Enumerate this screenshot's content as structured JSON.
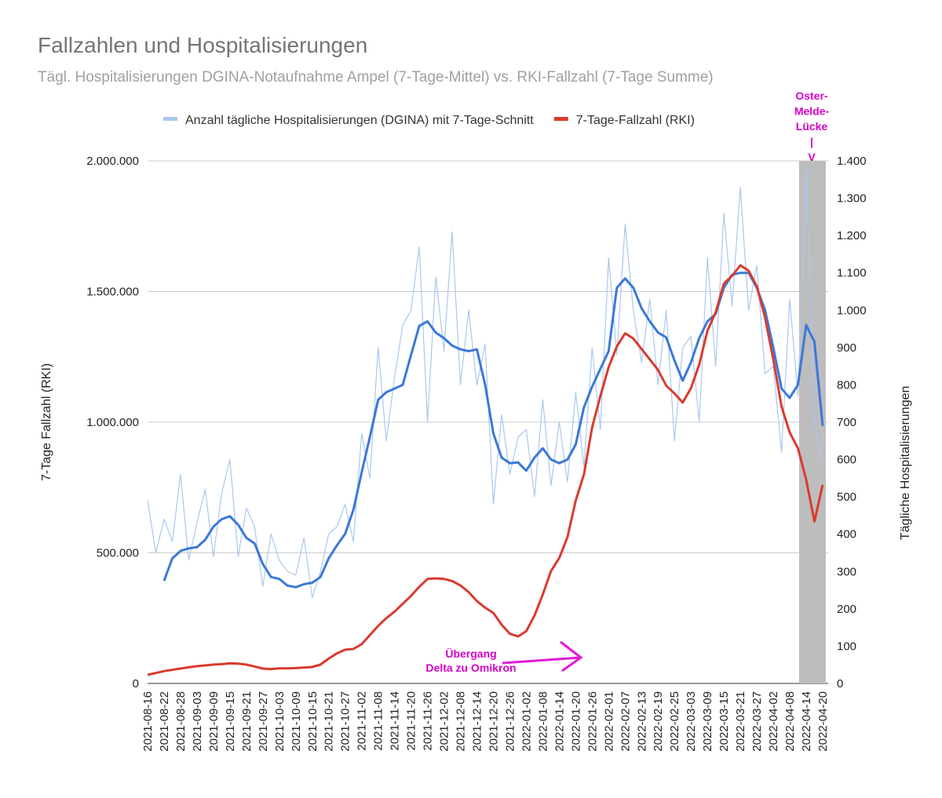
{
  "chart_data": {
    "type": "line",
    "title": "Fallzahlen und Hospitalisierungen",
    "subtitle": "Tägl. Hospitalisierungen DGINA-Notaufnahme Ampel (7-Tage-Mittel) vs. RKI-Fallzahl (7-Tage Summe)",
    "y_label": "7-Tage Fallzahl (RKI)",
    "y2_label": "Tägliche Hospitalisierungen",
    "annotations": [
      {
        "lines": [
          "Oster-",
          "Melde-",
          "Lücke",
          "|",
          "V"
        ],
        "color": "#d400c8"
      },
      {
        "lines": [
          "Übergang",
          "Delta zu Omikron"
        ],
        "color": "#d400c8"
      }
    ],
    "categories": [
      "2021-08-16",
      null,
      "2021-08-22",
      null,
      "2021-08-28",
      null,
      "2021-09-03",
      null,
      "2021-09-09",
      null,
      "2021-09-15",
      null,
      "2021-09-21",
      null,
      "2021-09-27",
      null,
      "2021-10-03",
      null,
      "2021-10-09",
      null,
      "2021-10-15",
      null,
      "2021-10-21",
      null,
      "2021-10-27",
      null,
      "2021-11-02",
      null,
      "2021-11-08",
      null,
      "2021-11-14",
      null,
      "2021-11-20",
      null,
      "2021-11-26",
      null,
      "2021-12-02",
      null,
      "2021-12-08",
      null,
      "2021-12-14",
      null,
      "2021-12-20",
      null,
      "2021-12-26",
      null,
      "2022-01-02",
      null,
      "2022-01-08",
      null,
      "2022-01-14",
      null,
      "2022-01-20",
      null,
      "2022-01-26",
      null,
      "2022-02-01",
      null,
      "2022-02-07",
      null,
      "2022-02-13",
      null,
      "2022-02-19",
      null,
      "2022-02-25",
      null,
      "2022-03-03",
      null,
      "2022-03-09",
      null,
      "2022-03-15",
      null,
      "2022-03-21",
      null,
      "2022-03-27",
      null,
      "2022-04-02",
      null,
      "2022-04-08",
      null,
      "2022-04-14",
      null,
      "2022-04-20"
    ],
    "series": [
      {
        "name": "Anzahl tägliche Hospitalisierungen (DGINA) mit 7-Tage-Schnitt",
        "color": "#a9c8f0",
        "axis": "y2",
        "width": 1.2,
        "values": [
          490,
          350,
          440,
          380,
          560,
          330,
          430,
          520,
          340,
          510,
          600,
          340,
          470,
          420,
          260,
          400,
          330,
          300,
          290,
          390,
          230,
          300,
          400,
          420,
          480,
          380,
          670,
          550,
          900,
          650,
          820,
          960,
          1000,
          1170,
          700,
          1090,
          890,
          1210,
          800,
          1000,
          800,
          910,
          480,
          720,
          560,
          660,
          680,
          500,
          760,
          530,
          700,
          540,
          780,
          580,
          900,
          680,
          1140,
          880,
          1230,
          1000,
          860,
          1030,
          800,
          1000,
          650,
          900,
          930,
          700,
          1140,
          850,
          1260,
          1010,
          1330,
          1000,
          1120,
          830,
          850,
          620,
          1030,
          770,
          1380,
          700,
          580
        ]
      },
      {
        "color": "#3b78d8",
        "axis": "y2",
        "width": 3,
        "values": [
          null,
          null,
          275,
          335,
          355,
          362,
          365,
          385,
          420,
          440,
          448,
          425,
          390,
          375,
          320,
          285,
          280,
          262,
          258,
          266,
          270,
          285,
          335,
          370,
          401,
          465,
          565,
          660,
          760,
          780,
          790,
          800,
          880,
          958,
          970,
          940,
          925,
          905,
          895,
          890,
          895,
          800,
          670,
          605,
          590,
          592,
          570,
          605,
          630,
          600,
          590,
          600,
          640,
          740,
          795,
          843,
          890,
          1060,
          1085,
          1060,
          1005,
          970,
          940,
          927,
          865,
          811,
          860,
          925,
          970,
          990,
          1060,
          1095,
          1100,
          1100,
          1060,
          1000,
          900,
          790,
          765,
          800,
          960,
          915,
          690
        ]
      },
      {
        "name": "7-Tage-Fallzahl (RKI)",
        "color": "#db3a2e",
        "axis": "y",
        "width": 3,
        "values": [
          33000,
          40000,
          47000,
          52000,
          57000,
          62000,
          66000,
          69000,
          72000,
          74000,
          77000,
          76000,
          72000,
          65000,
          57000,
          55000,
          58000,
          58000,
          59000,
          61000,
          63000,
          72000,
          95000,
          115000,
          129000,
          132000,
          150000,
          185000,
          220000,
          250000,
          275000,
          305000,
          335000,
          370000,
          400000,
          402000,
          400000,
          392000,
          375000,
          350000,
          315000,
          290000,
          270000,
          225000,
          190000,
          180000,
          200000,
          260000,
          340000,
          430000,
          480000,
          560000,
          700000,
          800000,
          980000,
          1100000,
          1210000,
          1290000,
          1340000,
          1320000,
          1280000,
          1240000,
          1200000,
          1140000,
          1110000,
          1075000,
          1130000,
          1220000,
          1350000,
          1420000,
          1530000,
          1560000,
          1600000,
          1580000,
          1520000,
          1400000,
          1240000,
          1060000,
          960000,
          900000,
          780000,
          620000,
          760000
        ]
      }
    ],
    "ylim": [
      0,
      2000000
    ],
    "yticks": [
      0,
      {
        "value": 500000,
        "label": "500.000"
      },
      {
        "value": 1000000,
        "label": "1.000.000"
      },
      {
        "value": 1500000,
        "label": "1.500.000"
      },
      {
        "value": 2000000,
        "label": "2.000.000"
      }
    ],
    "y2lim": [
      0,
      1400
    ],
    "y2ticks": [
      0,
      100,
      200,
      300,
      400,
      500,
      600,
      700,
      800,
      900,
      {
        "value": 1000,
        "label": "1.000"
      },
      {
        "value": 1100,
        "label": "1.100"
      },
      {
        "value": 1200,
        "label": "1.200"
      },
      {
        "value": 1300,
        "label": "1.300"
      },
      {
        "value": 1400,
        "label": "1.400"
      }
    ],
    "grid": true,
    "legend": "top"
  }
}
